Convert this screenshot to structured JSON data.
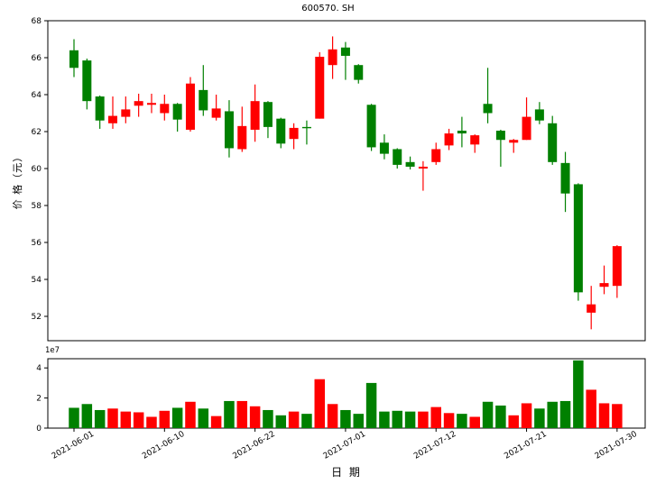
{
  "figure": {
    "title": "600570. SH",
    "xlabel": "日 期",
    "ylabel": "价 格（元）",
    "volume_offset_label": "1e7",
    "colors": {
      "up": "#ff0000",
      "down": "#008000",
      "axis": "#000000",
      "background": "#ffffff"
    }
  },
  "chart_data": {
    "type": "candlestick",
    "title": "600570. SH",
    "xlabel": "日 期",
    "ylabel_price": "价 格（元）",
    "volume_scale": "1e7",
    "legend": "none",
    "grid": false,
    "price_axis": {
      "ticks": [
        68,
        66,
        64,
        62,
        60,
        58,
        56,
        54,
        52
      ],
      "ylim": [
        50.7,
        68.0
      ]
    },
    "volume_axis": {
      "ticks": [
        0,
        2,
        4
      ],
      "ylim_1e7": [
        0,
        4.6
      ]
    },
    "x_tick_labels": [
      "2021-06-01",
      "2021-06-10",
      "2021-06-22",
      "2021-07-01",
      "2021-07-12",
      "2021-07-21",
      "2021-07-30"
    ],
    "x_tick_indices": [
      0,
      7,
      14,
      21,
      28,
      35,
      42
    ],
    "candles": [
      {
        "d": "2021-06-01",
        "o": 66.4,
        "h": 67.0,
        "l": 64.95,
        "c": 65.45,
        "v": 1.35
      },
      {
        "d": "2021-06-02",
        "o": 65.85,
        "h": 65.95,
        "l": 63.2,
        "c": 63.65,
        "v": 1.6
      },
      {
        "d": "2021-06-03",
        "o": 63.9,
        "h": 63.95,
        "l": 62.15,
        "c": 62.6,
        "v": 1.2
      },
      {
        "d": "2021-06-04",
        "o": 62.45,
        "h": 63.9,
        "l": 62.15,
        "c": 62.85,
        "v": 1.3
      },
      {
        "d": "2021-06-07",
        "o": 62.8,
        "h": 63.9,
        "l": 62.45,
        "c": 63.2,
        "v": 1.1
      },
      {
        "d": "2021-06-08",
        "o": 63.4,
        "h": 64.05,
        "l": 62.8,
        "c": 63.65,
        "v": 1.05
      },
      {
        "d": "2021-06-09",
        "o": 63.45,
        "h": 64.05,
        "l": 63.0,
        "c": 63.55,
        "v": 0.75
      },
      {
        "d": "2021-06-10",
        "o": 63.0,
        "h": 64.0,
        "l": 62.6,
        "c": 63.5,
        "v": 1.15
      },
      {
        "d": "2021-06-11",
        "o": 63.5,
        "h": 63.55,
        "l": 62.0,
        "c": 62.65,
        "v": 1.35
      },
      {
        "d": "2021-06-15",
        "o": 62.1,
        "h": 64.95,
        "l": 62.0,
        "c": 64.6,
        "v": 1.75
      },
      {
        "d": "2021-06-16",
        "o": 64.25,
        "h": 65.6,
        "l": 62.85,
        "c": 63.15,
        "v": 1.3
      },
      {
        "d": "2021-06-17",
        "o": 62.75,
        "h": 64.0,
        "l": 62.6,
        "c": 63.25,
        "v": 0.8
      },
      {
        "d": "2021-06-18",
        "o": 63.1,
        "h": 63.7,
        "l": 60.6,
        "c": 61.1,
        "v": 1.8
      },
      {
        "d": "2021-06-21",
        "o": 61.05,
        "h": 63.35,
        "l": 60.9,
        "c": 62.3,
        "v": 1.8
      },
      {
        "d": "2021-06-22",
        "o": 62.1,
        "h": 64.55,
        "l": 61.45,
        "c": 63.65,
        "v": 1.45
      },
      {
        "d": "2021-06-23",
        "o": 63.6,
        "h": 63.65,
        "l": 61.65,
        "c": 62.25,
        "v": 1.2
      },
      {
        "d": "2021-06-24",
        "o": 62.7,
        "h": 62.75,
        "l": 61.1,
        "c": 61.35,
        "v": 0.85
      },
      {
        "d": "2021-06-25",
        "o": 61.6,
        "h": 62.45,
        "l": 61.05,
        "c": 62.2,
        "v": 1.1
      },
      {
        "d": "2021-06-28",
        "o": 62.25,
        "h": 62.6,
        "l": 61.3,
        "c": 62.2,
        "v": 0.95
      },
      {
        "d": "2021-06-29",
        "o": 62.7,
        "h": 66.3,
        "l": 62.7,
        "c": 66.05,
        "v": 3.25
      },
      {
        "d": "2021-06-30",
        "o": 65.6,
        "h": 67.15,
        "l": 64.85,
        "c": 66.45,
        "v": 1.6
      },
      {
        "d": "2021-07-01",
        "o": 66.55,
        "h": 66.85,
        "l": 64.8,
        "c": 66.1,
        "v": 1.2
      },
      {
        "d": "2021-07-02",
        "o": 65.6,
        "h": 65.65,
        "l": 64.6,
        "c": 64.8,
        "v": 0.95
      },
      {
        "d": "2021-07-05",
        "o": 63.45,
        "h": 63.5,
        "l": 60.95,
        "c": 61.15,
        "v": 3.0
      },
      {
        "d": "2021-07-06",
        "o": 61.4,
        "h": 61.85,
        "l": 60.5,
        "c": 60.8,
        "v": 1.1
      },
      {
        "d": "2021-07-07",
        "o": 61.05,
        "h": 61.1,
        "l": 60.0,
        "c": 60.2,
        "v": 1.15
      },
      {
        "d": "2021-07-08",
        "o": 60.35,
        "h": 60.65,
        "l": 59.95,
        "c": 60.1,
        "v": 1.1
      },
      {
        "d": "2021-07-09",
        "o": 60.0,
        "h": 60.4,
        "l": 58.8,
        "c": 60.1,
        "v": 1.1
      },
      {
        "d": "2021-07-12",
        "o": 60.35,
        "h": 61.4,
        "l": 60.2,
        "c": 61.05,
        "v": 1.4
      },
      {
        "d": "2021-07-13",
        "o": 61.25,
        "h": 62.15,
        "l": 61.0,
        "c": 61.9,
        "v": 1.0
      },
      {
        "d": "2021-07-14",
        "o": 62.05,
        "h": 62.8,
        "l": 61.15,
        "c": 61.9,
        "v": 0.95
      },
      {
        "d": "2021-07-15",
        "o": 61.3,
        "h": 61.85,
        "l": 60.85,
        "c": 61.8,
        "v": 0.75
      },
      {
        "d": "2021-07-16",
        "o": 63.5,
        "h": 65.45,
        "l": 62.45,
        "c": 63.0,
        "v": 1.75
      },
      {
        "d": "2021-07-19",
        "o": 62.05,
        "h": 62.1,
        "l": 60.1,
        "c": 61.55,
        "v": 1.5
      },
      {
        "d": "2021-07-20",
        "o": 61.4,
        "h": 61.6,
        "l": 60.85,
        "c": 61.55,
        "v": 0.85
      },
      {
        "d": "2021-07-21",
        "o": 61.55,
        "h": 63.85,
        "l": 61.55,
        "c": 62.8,
        "v": 1.65
      },
      {
        "d": "2021-07-22",
        "o": 63.2,
        "h": 63.6,
        "l": 62.4,
        "c": 62.6,
        "v": 1.3
      },
      {
        "d": "2021-07-23",
        "o": 62.45,
        "h": 62.85,
        "l": 60.2,
        "c": 60.35,
        "v": 1.75
      },
      {
        "d": "2021-07-26",
        "o": 60.3,
        "h": 60.9,
        "l": 57.65,
        "c": 58.65,
        "v": 1.8
      },
      {
        "d": "2021-07-27",
        "o": 59.15,
        "h": 59.2,
        "l": 52.85,
        "c": 53.3,
        "v": 4.5
      },
      {
        "d": "2021-07-28",
        "o": 52.2,
        "h": 53.65,
        "l": 51.3,
        "c": 52.65,
        "v": 2.55
      },
      {
        "d": "2021-07-29",
        "o": 53.6,
        "h": 54.75,
        "l": 53.2,
        "c": 53.8,
        "v": 1.65
      },
      {
        "d": "2021-07-30",
        "o": 53.65,
        "h": 55.85,
        "l": 53.0,
        "c": 55.8,
        "v": 1.6
      }
    ]
  }
}
